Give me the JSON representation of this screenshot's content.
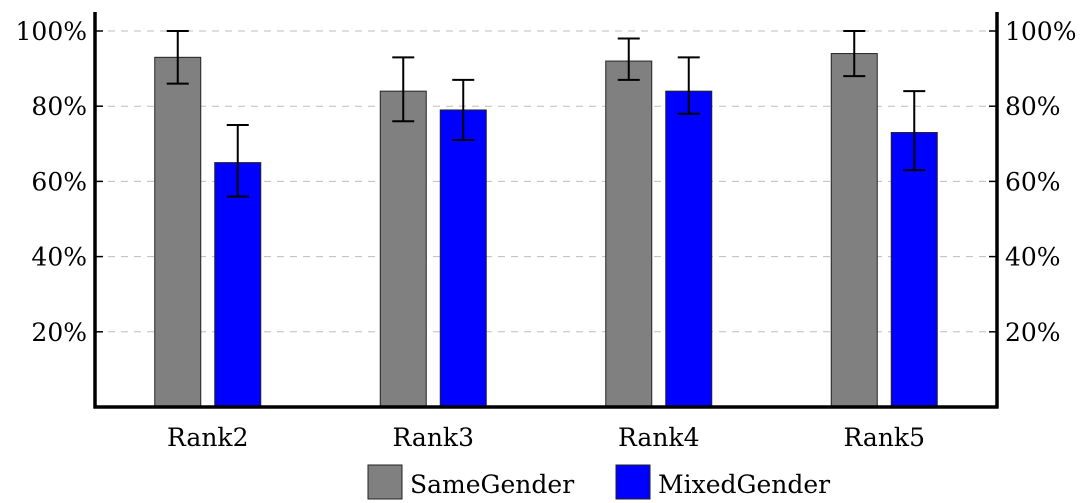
{
  "chart_data": {
    "type": "bar",
    "title": "",
    "xlabel": "",
    "ylabel": "",
    "categories": [
      "Rank2",
      "Rank3",
      "Rank4",
      "Rank5"
    ],
    "ylim": [
      0,
      100
    ],
    "yticks": [
      20,
      40,
      60,
      80,
      100
    ],
    "ytick_labels": [
      "20%",
      "40%",
      "60%",
      "80%",
      "100%"
    ],
    "grid": true,
    "legend_position": "bottom",
    "series": [
      {
        "name": "SameGender",
        "color": "#808080",
        "values": [
          93,
          84,
          92,
          94
        ],
        "error_low": [
          86,
          76,
          87,
          88
        ],
        "error_high": [
          100,
          93,
          98,
          100
        ]
      },
      {
        "name": "MixedGender",
        "color": "#0000ff",
        "values": [
          65,
          79,
          84,
          73
        ],
        "error_low": [
          56,
          71,
          78,
          63
        ],
        "error_high": [
          75,
          87,
          93,
          84
        ]
      }
    ]
  }
}
